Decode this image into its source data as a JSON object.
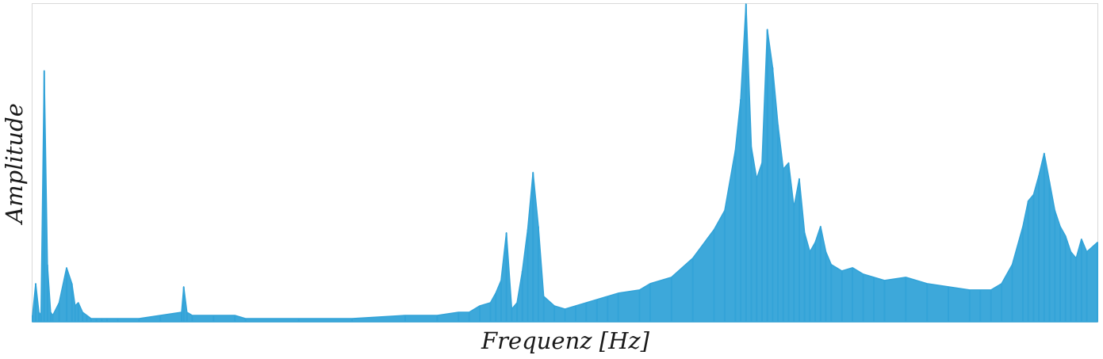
{
  "chart_data": {
    "type": "area",
    "title": "",
    "xlabel": "Frequenz [Hz]",
    "ylabel": "Amplitude",
    "x_ticks_shown": false,
    "y_ticks_shown": false,
    "grid": false,
    "legend": "none",
    "ylim": [
      0,
      1
    ],
    "xlim": [
      0,
      1
    ],
    "series_color": "#33a3d8",
    "frame_color": "#d9d9d9",
    "x": [
      0,
      0.003,
      0.006,
      0.008,
      0.011,
      0.014,
      0.017,
      0.019,
      0.025,
      0.032,
      0.037,
      0.04,
      0.043,
      0.047,
      0.051,
      0.055,
      0.06,
      0.065,
      0.07,
      0.08,
      0.1,
      0.12,
      0.14,
      0.142,
      0.145,
      0.15,
      0.17,
      0.19,
      0.2,
      0.25,
      0.3,
      0.3,
      0.35,
      0.38,
      0.4,
      0.41,
      0.42,
      0.43,
      0.435,
      0.44,
      0.445,
      0.45,
      0.455,
      0.46,
      0.465,
      0.47,
      0.475,
      0.48,
      0.49,
      0.5,
      0.51,
      0.52,
      0.53,
      0.54,
      0.55,
      0.57,
      0.58,
      0.6,
      0.62,
      0.64,
      0.65,
      0.66,
      0.665,
      0.67,
      0.675,
      0.68,
      0.685,
      0.69,
      0.695,
      0.7,
      0.705,
      0.71,
      0.715,
      0.72,
      0.725,
      0.73,
      0.735,
      0.74,
      0.745,
      0.75,
      0.76,
      0.77,
      0.78,
      0.79,
      0.8,
      0.82,
      0.84,
      0.86,
      0.88,
      0.89,
      0.9,
      0.91,
      0.92,
      0.93,
      0.935,
      0.94,
      0.945,
      0.95,
      0.955,
      0.96,
      0.965,
      0.97,
      0.975,
      0.98,
      0.985,
      0.99,
      1.0
    ],
    "y": [
      0.02,
      0.12,
      0.03,
      0.02,
      0.79,
      0.18,
      0.03,
      0.02,
      0.06,
      0.17,
      0.12,
      0.05,
      0.06,
      0.03,
      0.02,
      0.01,
      0.01,
      0.01,
      0.01,
      0.01,
      0.01,
      0.02,
      0.03,
      0.11,
      0.03,
      0.02,
      0.02,
      0.02,
      0.01,
      0.01,
      0.01,
      0.01,
      0.02,
      0.02,
      0.03,
      0.03,
      0.05,
      0.06,
      0.09,
      0.13,
      0.28,
      0.04,
      0.06,
      0.16,
      0.29,
      0.47,
      0.3,
      0.08,
      0.05,
      0.04,
      0.05,
      0.06,
      0.07,
      0.08,
      0.09,
      0.1,
      0.12,
      0.14,
      0.2,
      0.29,
      0.35,
      0.54,
      0.7,
      1.0,
      0.55,
      0.45,
      0.5,
      0.92,
      0.8,
      0.62,
      0.48,
      0.5,
      0.36,
      0.45,
      0.28,
      0.22,
      0.25,
      0.3,
      0.22,
      0.18,
      0.16,
      0.17,
      0.15,
      0.14,
      0.13,
      0.14,
      0.12,
      0.11,
      0.1,
      0.1,
      0.1,
      0.12,
      0.18,
      0.3,
      0.38,
      0.4,
      0.46,
      0.53,
      0.44,
      0.35,
      0.3,
      0.27,
      0.22,
      0.2,
      0.26,
      0.22,
      0.25
    ]
  }
}
